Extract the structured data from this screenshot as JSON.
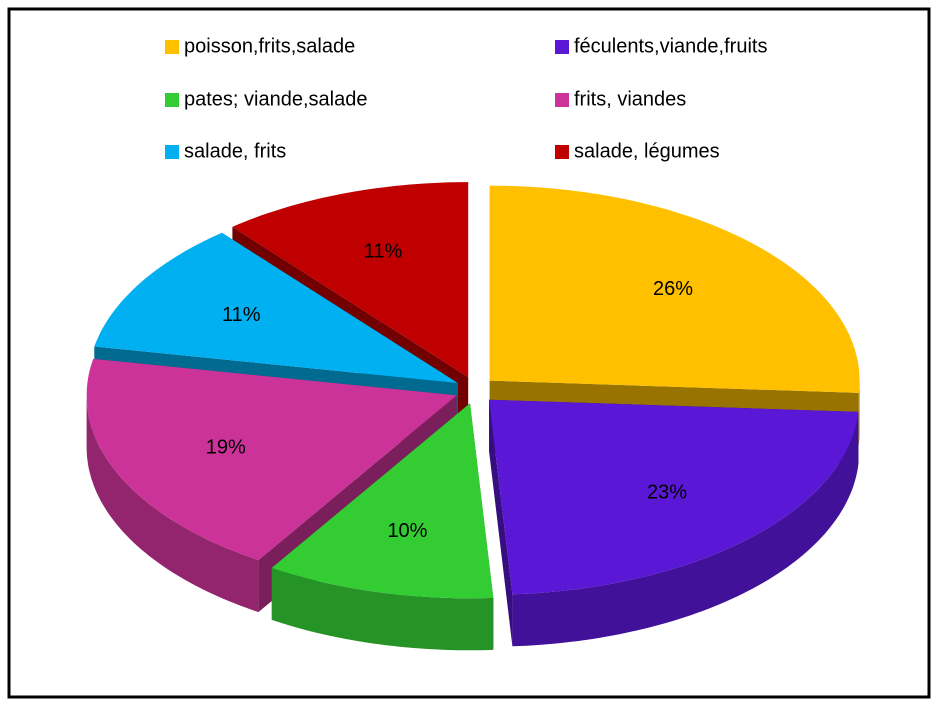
{
  "chart_data": {
    "type": "pie",
    "categories": [
      "poisson,frits,salade",
      "féculents,viande,fruits",
      "pates; viande,salade",
      "frits, viandes",
      "salade, frits",
      "salade, légumes"
    ],
    "values": [
      26,
      23,
      10,
      19,
      11,
      11
    ],
    "value_labels": [
      "26%",
      "23%",
      "10%",
      "19%",
      "11%",
      "11%"
    ],
    "colors": [
      "#ffc000",
      "#5a17d6",
      "#33cc33",
      "#cc3399",
      "#00b0f0",
      "#c00000"
    ],
    "legend": "top"
  }
}
